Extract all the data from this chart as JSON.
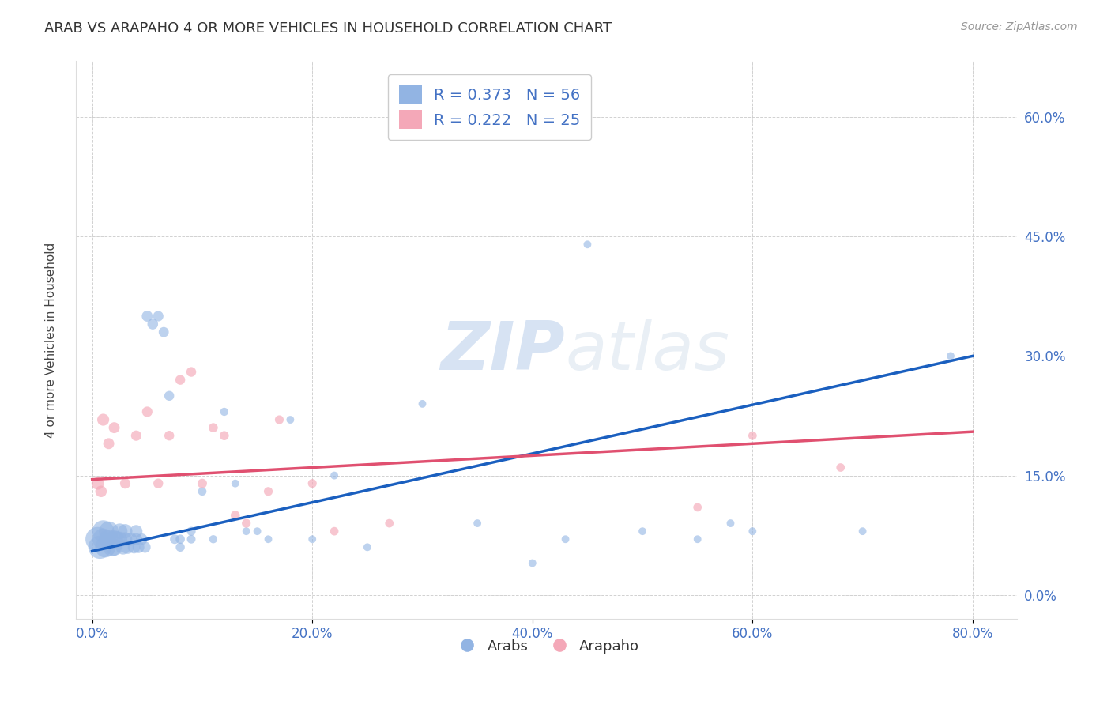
{
  "title": "ARAB VS ARAPAHO 4 OR MORE VEHICLES IN HOUSEHOLD CORRELATION CHART",
  "source": "Source: ZipAtlas.com",
  "xlabel_ticks": [
    "0.0%",
    "20.0%",
    "40.0%",
    "60.0%",
    "80.0%"
  ],
  "xlabel_tick_vals": [
    0.0,
    0.2,
    0.4,
    0.6,
    0.8
  ],
  "ylabel": "4 or more Vehicles in Household",
  "ylabel_ticks": [
    "0.0%",
    "15.0%",
    "30.0%",
    "45.0%",
    "60.0%"
  ],
  "ylabel_tick_vals": [
    0.0,
    0.15,
    0.3,
    0.45,
    0.6
  ],
  "xlim": [
    -0.015,
    0.84
  ],
  "ylim": [
    -0.03,
    0.67
  ],
  "arab_R": "0.373",
  "arab_N": "56",
  "arapaho_R": "0.222",
  "arapaho_N": "25",
  "arab_color": "#92b4e3",
  "arab_line_color": "#1a5fbf",
  "arapaho_color": "#f4a8b8",
  "arapaho_line_color": "#e05070",
  "arab_scatter_x": [
    0.005,
    0.007,
    0.01,
    0.01,
    0.012,
    0.015,
    0.015,
    0.018,
    0.02,
    0.02,
    0.022,
    0.025,
    0.025,
    0.028,
    0.03,
    0.03,
    0.032,
    0.035,
    0.038,
    0.04,
    0.04,
    0.042,
    0.045,
    0.048,
    0.05,
    0.055,
    0.06,
    0.065,
    0.07,
    0.075,
    0.08,
    0.08,
    0.09,
    0.09,
    0.1,
    0.11,
    0.12,
    0.13,
    0.14,
    0.15,
    0.16,
    0.18,
    0.2,
    0.22,
    0.25,
    0.3,
    0.35,
    0.4,
    0.43,
    0.45,
    0.5,
    0.55,
    0.58,
    0.6,
    0.7,
    0.78
  ],
  "arab_scatter_y": [
    0.07,
    0.06,
    0.08,
    0.07,
    0.06,
    0.08,
    0.07,
    0.06,
    0.07,
    0.06,
    0.07,
    0.08,
    0.07,
    0.06,
    0.08,
    0.07,
    0.06,
    0.07,
    0.06,
    0.08,
    0.07,
    0.06,
    0.07,
    0.06,
    0.35,
    0.34,
    0.35,
    0.33,
    0.25,
    0.07,
    0.07,
    0.06,
    0.08,
    0.07,
    0.13,
    0.07,
    0.23,
    0.14,
    0.08,
    0.08,
    0.07,
    0.22,
    0.07,
    0.15,
    0.06,
    0.24,
    0.09,
    0.04,
    0.07,
    0.44,
    0.08,
    0.07,
    0.09,
    0.08,
    0.08,
    0.3
  ],
  "arab_scatter_size": [
    500,
    450,
    400,
    380,
    350,
    320,
    300,
    280,
    260,
    240,
    220,
    200,
    190,
    180,
    170,
    160,
    150,
    140,
    130,
    130,
    120,
    115,
    110,
    105,
    100,
    95,
    90,
    85,
    80,
    75,
    70,
    68,
    65,
    62,
    60,
    55,
    55,
    50,
    50,
    50,
    50,
    50,
    50,
    50,
    50,
    50,
    50,
    50,
    50,
    50,
    50,
    50,
    50,
    50,
    50,
    50
  ],
  "arapaho_scatter_x": [
    0.005,
    0.008,
    0.01,
    0.015,
    0.02,
    0.03,
    0.04,
    0.05,
    0.06,
    0.07,
    0.08,
    0.09,
    0.1,
    0.11,
    0.12,
    0.13,
    0.14,
    0.16,
    0.17,
    0.2,
    0.22,
    0.27,
    0.55,
    0.6,
    0.68
  ],
  "arapaho_scatter_y": [
    0.14,
    0.13,
    0.22,
    0.19,
    0.21,
    0.14,
    0.2,
    0.23,
    0.14,
    0.2,
    0.27,
    0.28,
    0.14,
    0.21,
    0.2,
    0.1,
    0.09,
    0.13,
    0.22,
    0.14,
    0.08,
    0.09,
    0.11,
    0.2,
    0.16
  ],
  "arapaho_scatter_size": [
    130,
    110,
    120,
    100,
    100,
    90,
    90,
    90,
    80,
    80,
    80,
    80,
    75,
    70,
    70,
    70,
    65,
    65,
    65,
    65,
    60,
    60,
    60,
    60,
    60
  ],
  "arab_line_x": [
    0.0,
    0.8
  ],
  "arab_line_y": [
    0.055,
    0.3
  ],
  "arapaho_line_x": [
    0.0,
    0.8
  ],
  "arapaho_line_y": [
    0.145,
    0.205
  ]
}
